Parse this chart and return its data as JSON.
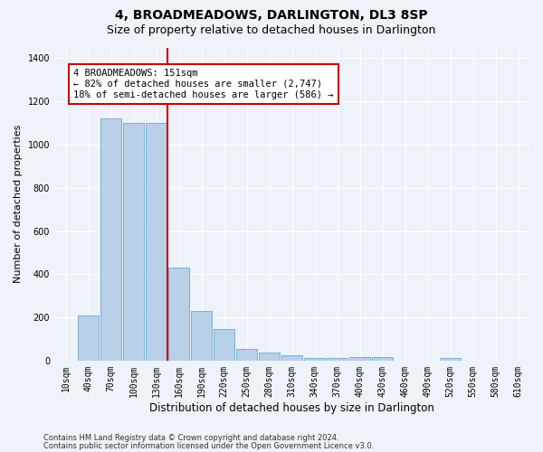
{
  "title": "4, BROADMEADOWS, DARLINGTON, DL3 8SP",
  "subtitle": "Size of property relative to detached houses in Darlington",
  "xlabel": "Distribution of detached houses by size in Darlington",
  "ylabel": "Number of detached properties",
  "footer_line1": "Contains HM Land Registry data © Crown copyright and database right 2024.",
  "footer_line2": "Contains public sector information licensed under the Open Government Licence v3.0.",
  "annotation_line1": "4 BROADMEADOWS: 151sqm",
  "annotation_line2": "← 82% of detached houses are smaller (2,747)",
  "annotation_line3": "18% of semi-detached houses are larger (586) →",
  "bar_color": "#b8d0e8",
  "bar_edge_color": "#6aaad4",
  "vline_color": "#cc0000",
  "annotation_box_color": "#cc0000",
  "categories": [
    "10sqm",
    "40sqm",
    "70sqm",
    "100sqm",
    "130sqm",
    "160sqm",
    "190sqm",
    "220sqm",
    "250sqm",
    "280sqm",
    "310sqm",
    "340sqm",
    "370sqm",
    "400sqm",
    "430sqm",
    "460sqm",
    "490sqm",
    "520sqm",
    "550sqm",
    "580sqm",
    "610sqm"
  ],
  "values": [
    0,
    210,
    1120,
    1100,
    1100,
    430,
    230,
    145,
    55,
    38,
    25,
    12,
    12,
    18,
    15,
    0,
    0,
    12,
    0,
    0,
    0
  ],
  "ylim": [
    0,
    1450
  ],
  "yticks": [
    0,
    200,
    400,
    600,
    800,
    1000,
    1200,
    1400
  ],
  "background_color": "#eef2f9",
  "plot_background": "#eef2f9",
  "grid_color": "#ffffff",
  "title_fontsize": 10,
  "subtitle_fontsize": 9,
  "tick_fontsize": 7,
  "ylabel_fontsize": 8,
  "xlabel_fontsize": 8.5,
  "footer_fontsize": 6,
  "annotation_fontsize": 7.5
}
